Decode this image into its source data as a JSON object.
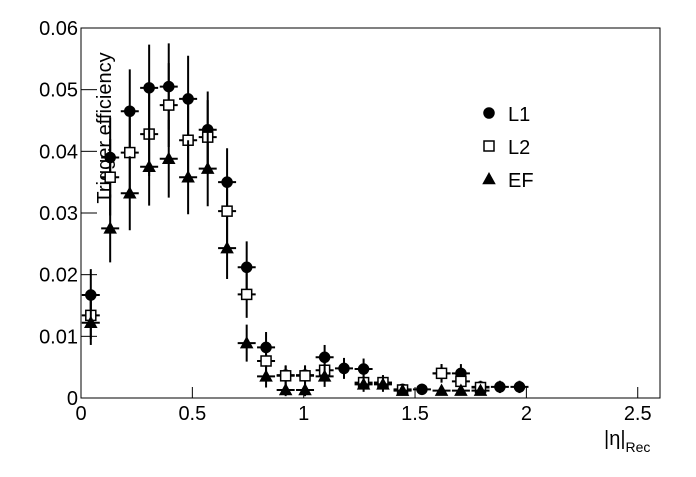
{
  "chart_data": {
    "type": "scatter",
    "y_label": "Trigger efficiency",
    "x_label": "|η|",
    "x_label_sub": "Rec",
    "xlim": [
      0,
      2.6
    ],
    "xticks": [
      0,
      0.5,
      1,
      1.5,
      2,
      2.5
    ],
    "ylim": [
      0,
      0.06
    ],
    "yticks": [
      0,
      0.01,
      0.02,
      0.03,
      0.04,
      0.05,
      0.06
    ],
    "legend_position": "upper right",
    "x": [
      0.044,
      0.131,
      0.219,
      0.306,
      0.394,
      0.481,
      0.569,
      0.656,
      0.744,
      0.831,
      0.919,
      1.006,
      1.094,
      1.181,
      1.269,
      1.356,
      1.444,
      1.531,
      1.619,
      1.706,
      1.794,
      1.881,
      1.969
    ],
    "series": [
      {
        "name": "L1",
        "color": "#000000",
        "marker": "circle",
        "values": [
          0.0167,
          0.039,
          0.0465,
          0.0503,
          0.0505,
          0.0485,
          0.0435,
          0.035,
          0.0212,
          0.0082,
          0.0037,
          0.0037,
          0.0066,
          0.0048,
          0.0047,
          0.0025,
          0.0014,
          0.0014,
          0.004,
          0.004,
          0.0018,
          0.0018,
          0.0018
        ],
        "errors": [
          0.0042,
          0.0065,
          0.0068,
          0.007,
          0.007,
          0.007,
          0.0062,
          0.0055,
          0.0042,
          0.0025,
          0.0016,
          0.0016,
          0.002,
          0.0017,
          0.0017,
          0.0012,
          0.0009,
          0.0009,
          0.0015,
          0.0015,
          0.001,
          0.001,
          0.001
        ]
      },
      {
        "name": "L2",
        "color": "#000000",
        "marker": "square-open",
        "values": [
          0.0134,
          0.0358,
          0.0398,
          0.0428,
          0.0475,
          0.0418,
          0.0423,
          0.0303,
          0.0168,
          0.006,
          0.0036,
          0.0036,
          0.0045,
          null,
          0.0025,
          0.0025,
          0.0013,
          null,
          0.004,
          0.0027,
          0.0017,
          null,
          null
        ],
        "errors": [
          0.0038,
          0.0062,
          0.0065,
          0.0068,
          0.0068,
          0.0065,
          0.006,
          0.0052,
          0.0038,
          0.0022,
          0.0016,
          0.0016,
          0.0018,
          null,
          0.0012,
          0.0012,
          0.0009,
          null,
          0.0015,
          0.0012,
          0.001,
          null,
          null
        ]
      },
      {
        "name": "EF",
        "color": "#000000",
        "marker": "triangle",
        "values": [
          0.0122,
          0.0275,
          0.0332,
          0.0375,
          0.0388,
          0.0358,
          0.0372,
          0.0243,
          0.0089,
          0.0035,
          0.0013,
          0.0013,
          0.0035,
          null,
          0.0022,
          0.0022,
          0.0012,
          null,
          0.0012,
          0.0012,
          0.0012,
          null,
          null
        ],
        "errors": [
          0.0036,
          0.0055,
          0.006,
          0.0063,
          0.0063,
          0.006,
          0.0061,
          0.005,
          0.003,
          0.0018,
          0.001,
          0.001,
          0.0017,
          null,
          0.0012,
          0.0012,
          0.0008,
          null,
          0.0008,
          0.0008,
          0.0008,
          null,
          null
        ]
      }
    ]
  }
}
